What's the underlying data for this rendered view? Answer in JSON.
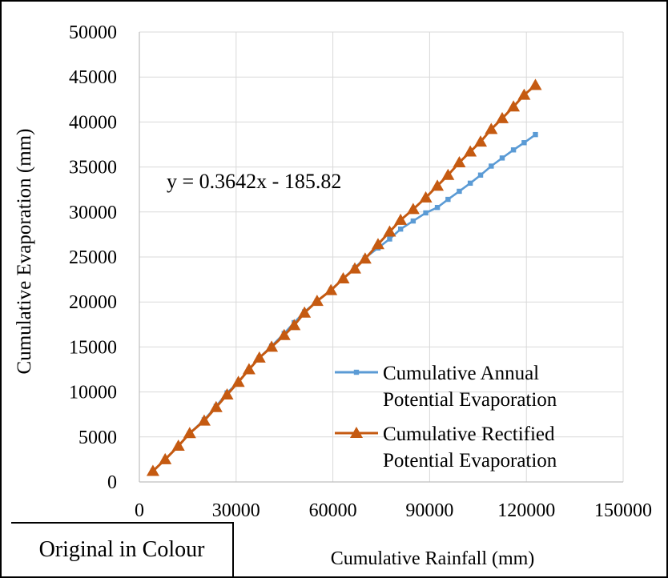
{
  "caption": "Original  in Colour",
  "chart_data": {
    "type": "line",
    "xlabel": "Cumulative Rainfall (mm)",
    "ylabel": "Cumulative Evaporation (mm)",
    "xlim": [
      0,
      150000
    ],
    "ylim": [
      0,
      50000
    ],
    "xticks": [
      0,
      30000,
      60000,
      90000,
      120000,
      150000
    ],
    "yticks": [
      0,
      5000,
      10000,
      15000,
      20000,
      25000,
      30000,
      35000,
      40000,
      45000,
      50000
    ],
    "grid": true,
    "legend_position": "lower-right",
    "annotation": "y = 0.3642x - 185.82",
    "series": [
      {
        "name": "Cumulative Annual Potential Evaporation",
        "color": "#5B9BD5",
        "marker": "square",
        "x": [
          4200,
          8000,
          12100,
          15600,
          20100,
          23800,
          27200,
          30700,
          34000,
          37200,
          41000,
          44900,
          48000,
          51200,
          55100,
          59400,
          63200,
          66800,
          70000,
          74000,
          77600,
          81000,
          84900,
          88800,
          92400,
          95700,
          99200,
          102600,
          105800,
          109100,
          112500,
          116000,
          119300,
          122800
        ],
        "y": [
          1200,
          2500,
          4000,
          5400,
          6900,
          8400,
          9900,
          11100,
          12500,
          13800,
          15100,
          16500,
          17700,
          18900,
          20100,
          21300,
          22600,
          23800,
          24900,
          26000,
          27000,
          28100,
          29000,
          29900,
          30500,
          31400,
          32300,
          33200,
          34100,
          35100,
          36000,
          36900,
          37700,
          38600
        ]
      },
      {
        "name": "Cumulative Rectified Potential Evaporation",
        "color": "#C55A11",
        "marker": "triangle",
        "x": [
          4200,
          8000,
          12100,
          15600,
          20100,
          23800,
          27200,
          30700,
          34000,
          37200,
          41000,
          44900,
          48000,
          51200,
          55100,
          59400,
          63200,
          66800,
          70000,
          74000,
          77600,
          81000,
          84900,
          88800,
          92400,
          95700,
          99200,
          102600,
          105800,
          109100,
          112500,
          116000,
          119300,
          122800
        ],
        "y": [
          1200,
          2500,
          4000,
          5400,
          6800,
          8300,
          9700,
          11100,
          12500,
          13800,
          15000,
          16300,
          17400,
          18800,
          20100,
          21300,
          22600,
          23700,
          24800,
          26400,
          27800,
          29100,
          30300,
          31600,
          32900,
          34100,
          35500,
          36700,
          37800,
          39200,
          40400,
          41700,
          43000,
          44100
        ]
      }
    ]
  }
}
